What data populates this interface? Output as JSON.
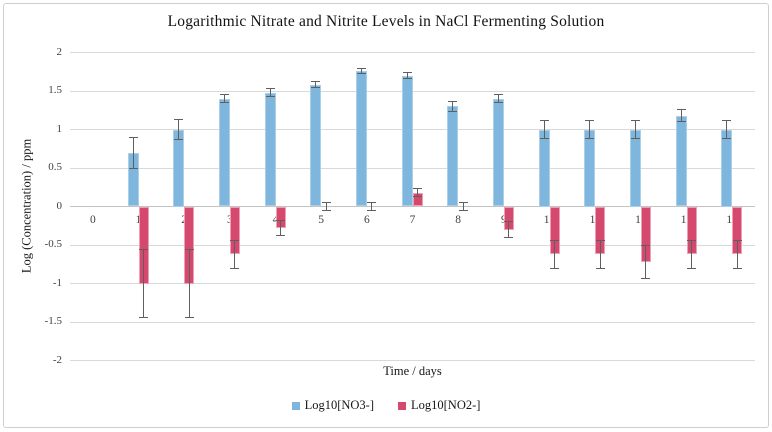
{
  "chart_data": {
    "type": "bar",
    "title": "Logarithmic Nitrate and Nitrite Levels in NaCl Fermenting Solution",
    "xlabel": "Time / days",
    "ylabel": "Log (Concentration) / ppm",
    "ylim": [
      -2,
      2
    ],
    "ytick_step": 0.5,
    "yticks": [
      "2",
      "1.5",
      "1",
      "0.5",
      "0",
      "-0.5",
      "-1",
      "-1.5",
      "-2"
    ],
    "grid": true,
    "legend_position": "bottom",
    "categories": [
      "0",
      "1",
      "2",
      "3",
      "4",
      "5",
      "6",
      "7",
      "8",
      "9",
      "10",
      "11",
      "12",
      "13",
      "14"
    ],
    "series": [
      {
        "name": "Log10[NO3-]",
        "color": "#7EB6DE",
        "values": [
          null,
          0.7,
          1.0,
          1.4,
          1.48,
          1.58,
          1.76,
          1.7,
          1.3,
          1.4,
          1.0,
          1.0,
          1.0,
          1.18,
          1.0
        ],
        "errors": [
          null,
          0.2,
          0.13,
          0.05,
          0.05,
          0.04,
          0.03,
          0.04,
          0.06,
          0.05,
          0.12,
          0.12,
          0.12,
          0.08,
          0.12
        ]
      },
      {
        "name": "Log10[NO2-]",
        "color": "#D5496F",
        "values": [
          null,
          -1.0,
          -1.0,
          -0.62,
          -0.28,
          0,
          0,
          0.18,
          0,
          -0.3,
          -0.62,
          -0.62,
          -0.72,
          -0.62,
          -0.62
        ],
        "errors": [
          null,
          0.44,
          0.44,
          0.18,
          0.1,
          0.05,
          0.05,
          0.05,
          0.05,
          0.1,
          0.18,
          0.18,
          0.21,
          0.18,
          0.18
        ]
      }
    ]
  },
  "style": {
    "grid_color": "#d9d9d9",
    "axis_line_color": "#c3c3c3",
    "error_bar_color": "#5f5f5f",
    "tick_text_color": "#3f3f3f",
    "frame_border_color": "#cfcfcf",
    "bar_edge_no3": "#a9cfe9",
    "bar_edge_no2": "#eda0b6"
  }
}
